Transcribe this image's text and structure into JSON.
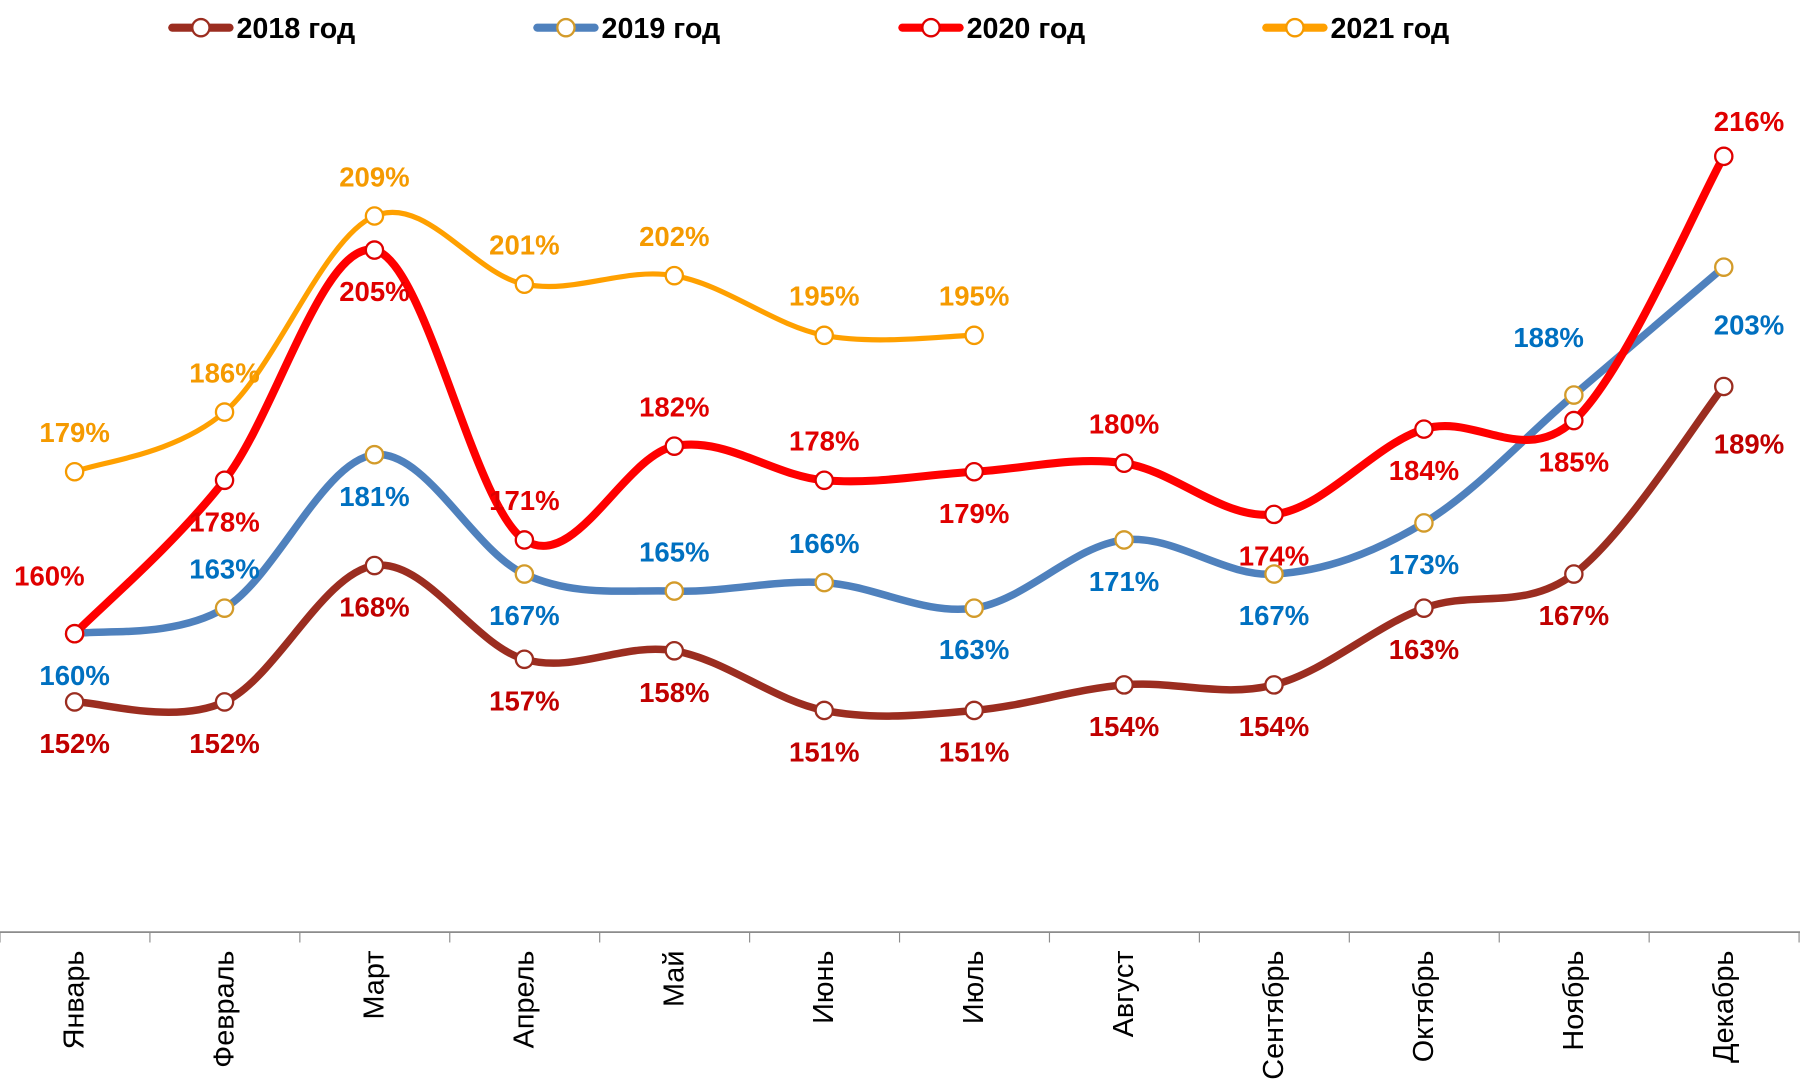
{
  "chart_data": {
    "type": "line",
    "title": "",
    "xlabel": "",
    "ylabel": "",
    "y_unit": "%",
    "y_axis_visible": false,
    "grid": false,
    "ylim": [
      125,
      235
    ],
    "legend_position": "top",
    "categories": [
      "Январь",
      "Февраль",
      "Март",
      "Апрель",
      "Май",
      "Июнь",
      "Июль",
      "Август",
      "Сентябрь",
      "Октябрь",
      "Ноябрь",
      "Декабрь"
    ],
    "series": [
      {
        "name": "2018 год",
        "line_color": "#9B2D20",
        "marker_stroke": "#9B2D20",
        "label_color": "#C00000",
        "values": [
          152,
          152,
          168,
          157,
          158,
          151,
          151,
          154,
          154,
          163,
          167,
          189
        ],
        "labels": [
          "152%",
          "152%",
          "168%",
          "157%",
          "158%",
          "151%",
          "151%",
          "154%",
          "154%",
          "163%",
          "167%",
          "189%"
        ],
        "label_side": [
          "below",
          "below",
          "below",
          "below",
          "below",
          "below",
          "below",
          "below",
          "below",
          "below",
          "below",
          "below-right"
        ]
      },
      {
        "name": "2019 год",
        "line_color": "#4F81BD",
        "marker_stroke": "#D39B2A",
        "label_color": "#0070C0",
        "values": [
          160,
          163,
          181,
          167,
          165,
          166,
          163,
          171,
          167,
          173,
          188,
          203
        ],
        "labels": [
          "160%",
          "163%",
          "181%",
          "167%",
          "165%",
          "166%",
          "163%",
          "171%",
          "167%",
          "173%",
          "188%",
          "203%"
        ],
        "label_side": [
          "below",
          "above",
          "below",
          "below",
          "above",
          "above",
          "below",
          "below",
          "below",
          "below",
          "above-left",
          "below-right"
        ]
      },
      {
        "name": "2020 год",
        "line_color": "#FF0000",
        "marker_stroke": "#E00000",
        "label_color": "#E00000",
        "values": [
          160,
          178,
          205,
          171,
          182,
          178,
          179,
          180,
          174,
          184,
          185,
          216
        ],
        "labels": [
          "160%",
          "178%",
          "205%",
          "171%",
          "182%",
          "178%",
          "179%",
          "180%",
          "174%",
          "184%",
          "185%",
          "216%"
        ],
        "label_side": [
          "above-left",
          "below",
          "below",
          "above",
          "above",
          "above",
          "below",
          "above",
          "below",
          "below",
          "below",
          "above-right"
        ]
      },
      {
        "name": "2021 год",
        "line_color": "#FFA000",
        "marker_stroke": "#F59A00",
        "label_color": "#F59A00",
        "values": [
          179,
          186,
          209,
          201,
          202,
          195,
          195,
          null,
          null,
          null,
          null,
          null
        ],
        "labels": [
          "179%",
          "186%",
          "209%",
          "201%",
          "202%",
          "195%",
          "195%",
          null,
          null,
          null,
          null,
          null
        ],
        "label_side": [
          "above",
          "above",
          "above",
          "above",
          "above",
          "above",
          "above",
          null,
          null,
          null,
          null,
          null
        ]
      }
    ]
  }
}
